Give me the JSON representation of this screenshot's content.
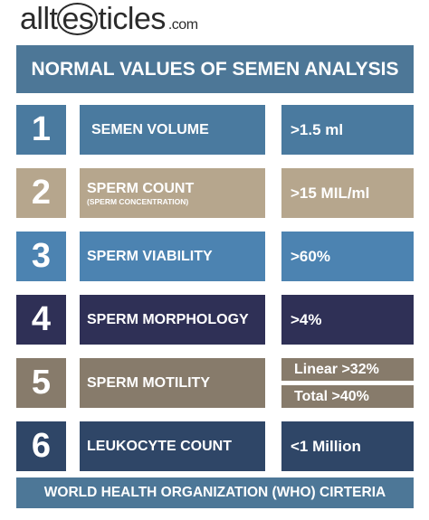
{
  "logo": {
    "prefix": "allt",
    "circled": "es",
    "suffix": "ticles",
    "domain": ".com"
  },
  "title": "NORMAL VALUES OF SEMEN ANALYSIS",
  "rows": [
    {
      "number": 1,
      "label": "SEMEN VOLUME",
      "values": [
        ">1.5 ml"
      ]
    },
    {
      "number": 2,
      "label": "SPERM COUNT",
      "sublabel": "(SPERM CONCENTRATION)",
      "values": [
        ">15 MIL/ml"
      ]
    },
    {
      "number": 3,
      "label": "SPERM VIABILITY",
      "values": [
        ">60%"
      ]
    },
    {
      "number": 4,
      "label": "SPERM MORPHOLOGY",
      "values": [
        ">4%"
      ]
    },
    {
      "number": 5,
      "label": "SPERM MOTILITY",
      "values": [
        "Linear >32%",
        "Total >40%"
      ]
    },
    {
      "number": 6,
      "label": "LEUKOCYTE COUNT",
      "values": [
        "<1 Million"
      ]
    }
  ],
  "footer": "WORLD HEALTH ORGANIZATION (WHO) CIRTERIA"
}
